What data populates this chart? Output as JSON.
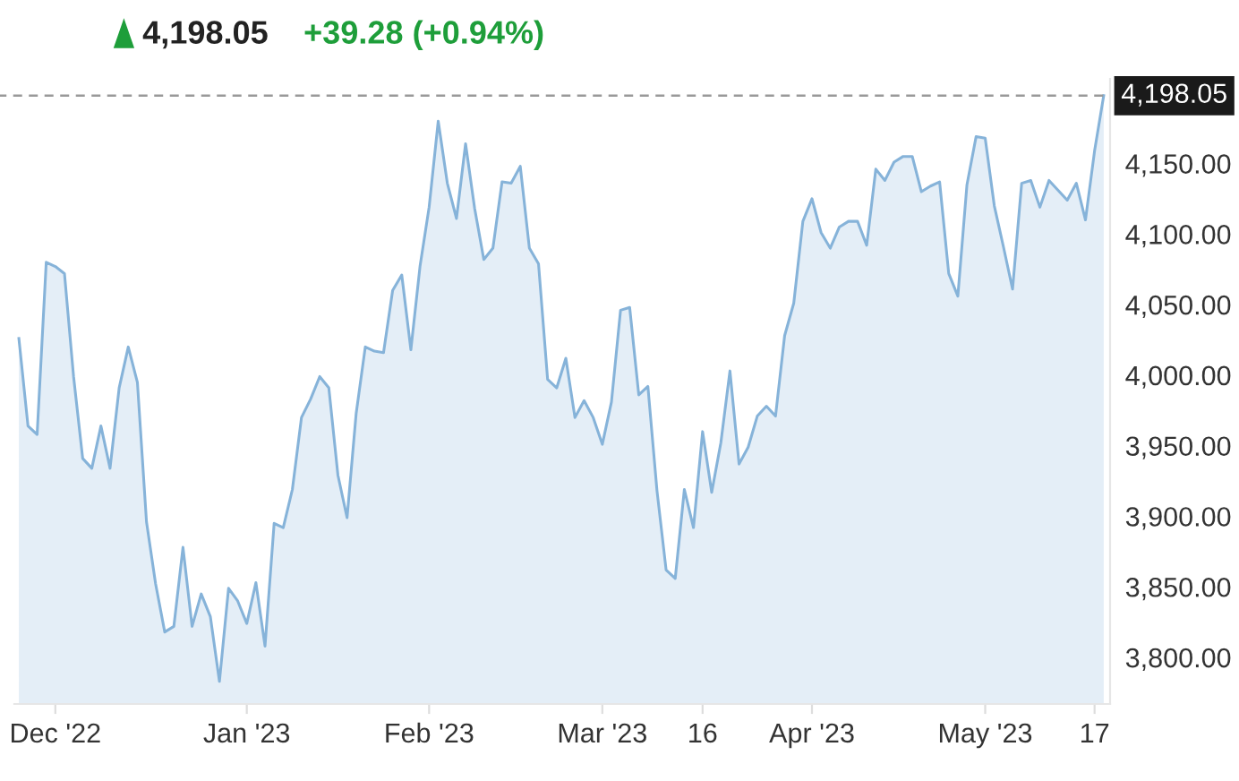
{
  "chart_data": {
    "type": "area",
    "title": "4,198.05",
    "subtitle": "+39.28 (+0.94%)",
    "categories": [
      null,
      null,
      null,
      null,
      "Dec '22",
      null,
      null,
      null,
      null,
      null,
      null,
      null,
      null,
      null,
      null,
      null,
      null,
      null,
      null,
      null,
      null,
      null,
      null,
      null,
      null,
      "Jan '23",
      null,
      null,
      null,
      null,
      null,
      null,
      null,
      null,
      null,
      null,
      null,
      null,
      null,
      null,
      null,
      null,
      null,
      null,
      null,
      "Feb '23",
      null,
      null,
      null,
      null,
      null,
      null,
      null,
      null,
      null,
      null,
      null,
      null,
      null,
      null,
      null,
      null,
      null,
      null,
      "Mar '23",
      null,
      null,
      null,
      null,
      null,
      null,
      null,
      null,
      null,
      null,
      "16",
      null,
      null,
      null,
      null,
      null,
      null,
      null,
      null,
      null,
      null,
      null,
      "Apr '23",
      null,
      null,
      null,
      null,
      null,
      null,
      null,
      null,
      null,
      null,
      null,
      null,
      null,
      null,
      null,
      null,
      null,
      null,
      "May '23",
      null,
      null,
      null,
      null,
      null,
      null,
      null,
      null,
      null,
      null,
      null,
      "17",
      null
    ],
    "series": [
      {
        "color": "#86b3d9",
        "values": [
          4026,
          3964,
          3958,
          4080,
          4077,
          4072,
          3999,
          3941,
          3934,
          3964,
          3934,
          3991,
          4020,
          3995,
          3896,
          3852,
          3818,
          3822,
          3878,
          3822,
          3845,
          3829,
          3783,
          3849,
          3840,
          3824,
          3853,
          3808,
          3895,
          3892,
          3919,
          3970,
          3983,
          3999,
          3991,
          3929,
          3899,
          3973,
          4020,
          4017,
          4016,
          4060,
          4071,
          4018,
          4077,
          4119,
          4180,
          4136,
          4111,
          4164,
          4118,
          4082,
          4090,
          4137,
          4136,
          4148,
          4090,
          4079,
          3997,
          3991,
          4012,
          3970,
          3982,
          3970,
          3951,
          3981,
          4046,
          4048,
          3986,
          3992,
          3918,
          3862,
          3856,
          3919,
          3892,
          3960,
          3917,
          3952,
          4003,
          3937,
          3949,
          3971,
          3978,
          3971,
          4028,
          4051,
          4109,
          4125,
          4101,
          4090,
          4105,
          4109,
          4109,
          4092,
          4146,
          4138,
          4151,
          4155,
          4155,
          4130,
          4134,
          4137,
          4072,
          4056,
          4135,
          4169,
          4168,
          4120,
          4091,
          4061,
          4136,
          4138,
          4119,
          4138,
          4131,
          4124,
          4136,
          4110,
          4159,
          4198.05
        ]
      }
    ],
    "ylim": [
      3767,
      4210
    ],
    "yticks": [
      {
        "value": 3800,
        "label": "3,800.00"
      },
      {
        "value": 3850,
        "label": "3,850.00"
      },
      {
        "value": 3900,
        "label": "3,900.00"
      },
      {
        "value": 3950,
        "label": "3,950.00"
      },
      {
        "value": 4000,
        "label": "4,000.00"
      },
      {
        "value": 4050,
        "label": "4,050.00"
      },
      {
        "value": 4100,
        "label": "4,100.00"
      },
      {
        "value": 4150,
        "label": "4,150.00"
      }
    ],
    "ref_lines": [
      {
        "axis": "y",
        "value": 4198.05,
        "label": "4,198.05",
        "color": "#999999",
        "line_style": "dashed"
      }
    ],
    "grid": false,
    "legend": false
  }
}
